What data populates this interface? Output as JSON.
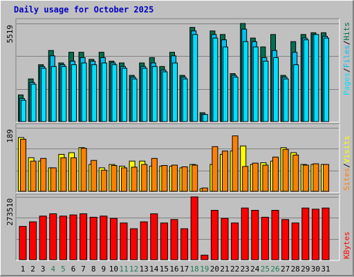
{
  "title": "Daily usage for October 2025",
  "colors": {
    "hits": "#007050",
    "files": "#00c0f0",
    "pages": "#00e0ff",
    "visits": "#ffff00",
    "sites": "#ff8000",
    "kbytes": "#ff0000",
    "weekend_label": "#1e7b55",
    "weekday_label": "#000000"
  },
  "chart_data": [
    {
      "type": "bar",
      "ylabel_max": "5519",
      "legend": [
        "Pages",
        "Files",
        "Hits"
      ],
      "ylim": [
        0,
        5519
      ],
      "series": [
        {
          "name": "Hits",
          "values": [
            1500,
            2400,
            3200,
            4000,
            3300,
            3900,
            3900,
            3500,
            3900,
            3400,
            3300,
            2600,
            3300,
            3600,
            3100,
            3900,
            2600,
            5300,
            500,
            5100,
            4900,
            2700,
            5519,
            4700,
            4200,
            4900,
            2600,
            4500,
            4900,
            5000,
            5000
          ]
        },
        {
          "name": "Files",
          "values": [
            1300,
            2200,
            3100,
            3700,
            3200,
            3400,
            3600,
            3400,
            3600,
            3300,
            3100,
            2500,
            3100,
            3300,
            2900,
            3700,
            2500,
            5100,
            400,
            4900,
            4600,
            2600,
            5200,
            4500,
            3600,
            4000,
            2500,
            3900,
            4700,
            4900,
            4800
          ]
        },
        {
          "name": "Pages",
          "values": [
            1200,
            2100,
            3000,
            3100,
            3100,
            3200,
            3300,
            3200,
            3300,
            3200,
            3000,
            2400,
            3000,
            3100,
            2800,
            3300,
            2400,
            4900,
            400,
            4700,
            4200,
            2500,
            4500,
            4200,
            3400,
            3600,
            2400,
            3200,
            4600,
            4900,
            4700
          ]
        }
      ]
    },
    {
      "type": "bar",
      "ylabel_max": "189",
      "legend": [
        "Sites",
        "Visits"
      ],
      "ylim": [
        0,
        189
      ],
      "series": [
        {
          "name": "Visits",
          "values": [
            160,
            100,
            90,
            70,
            110,
            115,
            130,
            80,
            70,
            80,
            75,
            90,
            90,
            75,
            75,
            75,
            70,
            80,
            8,
            80,
            110,
            120,
            135,
            80,
            85,
            90,
            130,
            115,
            80,
            80,
            80
          ]
        },
        {
          "name": "Sites",
          "values": [
            155,
            90,
            98,
            70,
            100,
            100,
            128,
            92,
            63,
            77,
            70,
            72,
            80,
            98,
            77,
            78,
            73,
            78,
            10,
            133,
            120,
            165,
            74,
            84,
            78,
            102,
            125,
            108,
            78,
            82,
            80
          ]
        }
      ]
    },
    {
      "type": "bar",
      "ylabel_max": "273510",
      "legend": [
        "KBytes"
      ],
      "ylim": [
        0,
        273510
      ],
      "series": [
        {
          "name": "KBytes",
          "values": [
            145000,
            165000,
            190000,
            200000,
            190000,
            195000,
            200000,
            185000,
            190000,
            180000,
            160000,
            135000,
            165000,
            200000,
            160000,
            175000,
            135000,
            273510,
            20000,
            215000,
            180000,
            160000,
            225000,
            215000,
            185000,
            215000,
            175000,
            160000,
            225000,
            220000,
            225000
          ]
        }
      ]
    }
  ],
  "days": [
    "1",
    "2",
    "3",
    "4",
    "5",
    "6",
    "7",
    "8",
    "9",
    "10",
    "11",
    "12",
    "13",
    "14",
    "15",
    "16",
    "17",
    "18",
    "19",
    "20",
    "21",
    "22",
    "23",
    "24",
    "25",
    "26",
    "27",
    "28",
    "29",
    "30",
    "31"
  ],
  "weekend_days": [
    4,
    5,
    11,
    12,
    18,
    19,
    25,
    26
  ]
}
